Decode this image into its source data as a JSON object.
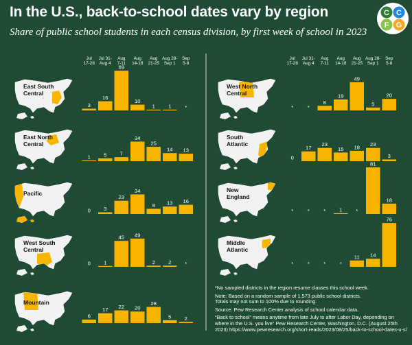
{
  "title": "In the U.S., back-to-school dates vary by region",
  "subtitle": "Share of public school students in each census division, by first week of school in 2023",
  "logo": {
    "letters": [
      "C",
      "C",
      "F",
      "G"
    ],
    "colors": [
      "#2e7d32",
      "#1e88e5",
      "#8bc34a",
      "#f9a825"
    ]
  },
  "colors": {
    "background": "#1f4a33",
    "bar": "#f7b500",
    "map_base": "#f2f2f2",
    "map_highlight": "#f7b500"
  },
  "notes": {
    "lines": [
      "*No sampled districts in the region resume classes this school week.",
      "Note: Based on a random sample of 1,573 public school districts.",
      "Totals may not sum to 100% due to rounding.",
      "Source: Pew Research Center analysis of school calendar data.",
      "“Back to school” means anytime from late July to after Labor Day, depending on where in the U.S. you live” Pew Research Center, Washington, D.C. (August 25th 2023) https://www.pewresearch.org/short-reads/2023/08/25/back-to-school-dates-u-s/"
    ]
  },
  "chart_data": {
    "type": "bar",
    "value_unit": "percent",
    "categories": [
      {
        "line1": "Jul",
        "line2": "17-28"
      },
      {
        "line1": "Jul 31-",
        "line2": "Aug 4"
      },
      {
        "line1": "Aug",
        "line2": "7-11"
      },
      {
        "line1": "Aug",
        "line2": "14-18"
      },
      {
        "line1": "Aug",
        "line2": "21-25"
      },
      {
        "line1": "Aug 28-",
        "line2": "Sep 1"
      },
      {
        "line1": "Sep",
        "line2": "5-8"
      }
    ],
    "series": [
      {
        "name": "East South Central",
        "label_lines": [
          "East South",
          "Central"
        ],
        "values": [
          3,
          16,
          69,
          10,
          1,
          1,
          null
        ],
        "labels": [
          "3",
          "16",
          "69",
          "10",
          "1",
          "1",
          "*"
        ]
      },
      {
        "name": "East North Central",
        "label_lines": [
          "East North",
          "Central"
        ],
        "values": [
          1,
          5,
          7,
          34,
          25,
          14,
          13
        ],
        "labels": [
          "1",
          "5",
          "7",
          "34",
          "25",
          "14",
          "13"
        ]
      },
      {
        "name": "Pacific",
        "label_lines": [
          "Pacific"
        ],
        "values": [
          0,
          3,
          23,
          34,
          9,
          13,
          16
        ],
        "labels": [
          "0",
          "3",
          "23",
          "34",
          "9",
          "13",
          "16"
        ]
      },
      {
        "name": "West South Central",
        "label_lines": [
          "West South",
          "Central"
        ],
        "values": [
          0,
          1,
          45,
          49,
          2,
          2,
          null
        ],
        "labels": [
          "0",
          "1",
          "45",
          "49",
          "2",
          "2",
          "*"
        ]
      },
      {
        "name": "Mountain",
        "label_lines": [
          "Mountain"
        ],
        "values": [
          6,
          17,
          22,
          20,
          28,
          5,
          2
        ],
        "labels": [
          "6",
          "17",
          "22",
          "20",
          "28",
          "5",
          "2"
        ]
      },
      {
        "name": "West North Central",
        "label_lines": [
          "West North",
          "Central"
        ],
        "values": [
          null,
          null,
          8,
          19,
          49,
          5,
          20
        ],
        "labels": [
          "*",
          "*",
          "8",
          "19",
          "49",
          "5",
          "20"
        ]
      },
      {
        "name": "South Atlantic",
        "label_lines": [
          "South",
          "Atlantic"
        ],
        "values": [
          0,
          17,
          23,
          15,
          18,
          23,
          3
        ],
        "labels": [
          "0",
          "17",
          "23",
          "15",
          "18",
          "23",
          "3"
        ]
      },
      {
        "name": "New England",
        "label_lines": [
          "New",
          "England"
        ],
        "values": [
          null,
          null,
          null,
          1,
          null,
          81,
          18
        ],
        "labels": [
          "*",
          "*",
          "*",
          "1",
          "*",
          "81",
          "18"
        ]
      },
      {
        "name": "Middle Atlantic",
        "label_lines": [
          "Middle",
          "Atlantic"
        ],
        "values": [
          null,
          null,
          null,
          null,
          11,
          14,
          76
        ],
        "labels": [
          "*",
          "*",
          "*",
          "*",
          "11",
          "14",
          "76"
        ]
      }
    ]
  }
}
